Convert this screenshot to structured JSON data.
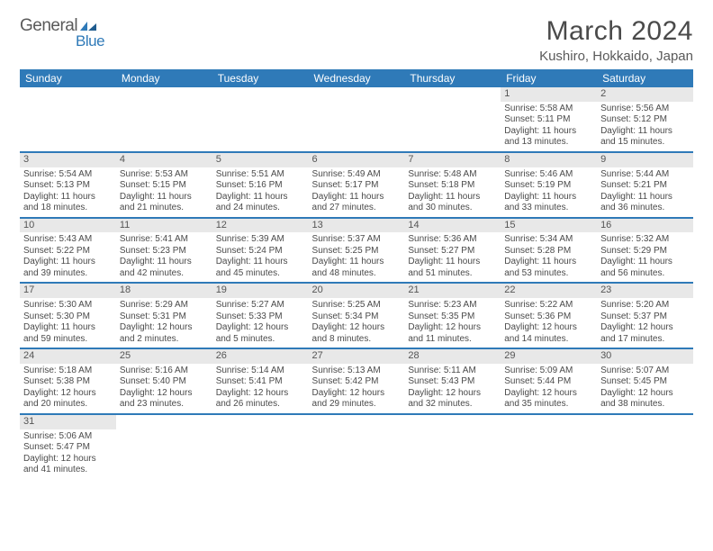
{
  "brand": {
    "name1": "General",
    "name2": "Blue"
  },
  "title": "March 2024",
  "location": "Kushiro, Hokkaido, Japan",
  "colors": {
    "header_bg": "#2f7ab8",
    "header_fg": "#ffffff",
    "daynum_bg": "#e8e8e8",
    "border": "#2f7ab8"
  },
  "weekdays": [
    "Sunday",
    "Monday",
    "Tuesday",
    "Wednesday",
    "Thursday",
    "Friday",
    "Saturday"
  ],
  "cells": [
    {
      "day": "",
      "sunrise": "",
      "sunset": "",
      "daylight": ""
    },
    {
      "day": "",
      "sunrise": "",
      "sunset": "",
      "daylight": ""
    },
    {
      "day": "",
      "sunrise": "",
      "sunset": "",
      "daylight": ""
    },
    {
      "day": "",
      "sunrise": "",
      "sunset": "",
      "daylight": ""
    },
    {
      "day": "",
      "sunrise": "",
      "sunset": "",
      "daylight": ""
    },
    {
      "day": "1",
      "sunrise": "Sunrise: 5:58 AM",
      "sunset": "Sunset: 5:11 PM",
      "daylight": "Daylight: 11 hours and 13 minutes."
    },
    {
      "day": "2",
      "sunrise": "Sunrise: 5:56 AM",
      "sunset": "Sunset: 5:12 PM",
      "daylight": "Daylight: 11 hours and 15 minutes."
    },
    {
      "day": "3",
      "sunrise": "Sunrise: 5:54 AM",
      "sunset": "Sunset: 5:13 PM",
      "daylight": "Daylight: 11 hours and 18 minutes."
    },
    {
      "day": "4",
      "sunrise": "Sunrise: 5:53 AM",
      "sunset": "Sunset: 5:15 PM",
      "daylight": "Daylight: 11 hours and 21 minutes."
    },
    {
      "day": "5",
      "sunrise": "Sunrise: 5:51 AM",
      "sunset": "Sunset: 5:16 PM",
      "daylight": "Daylight: 11 hours and 24 minutes."
    },
    {
      "day": "6",
      "sunrise": "Sunrise: 5:49 AM",
      "sunset": "Sunset: 5:17 PM",
      "daylight": "Daylight: 11 hours and 27 minutes."
    },
    {
      "day": "7",
      "sunrise": "Sunrise: 5:48 AM",
      "sunset": "Sunset: 5:18 PM",
      "daylight": "Daylight: 11 hours and 30 minutes."
    },
    {
      "day": "8",
      "sunrise": "Sunrise: 5:46 AM",
      "sunset": "Sunset: 5:19 PM",
      "daylight": "Daylight: 11 hours and 33 minutes."
    },
    {
      "day": "9",
      "sunrise": "Sunrise: 5:44 AM",
      "sunset": "Sunset: 5:21 PM",
      "daylight": "Daylight: 11 hours and 36 minutes."
    },
    {
      "day": "10",
      "sunrise": "Sunrise: 5:43 AM",
      "sunset": "Sunset: 5:22 PM",
      "daylight": "Daylight: 11 hours and 39 minutes."
    },
    {
      "day": "11",
      "sunrise": "Sunrise: 5:41 AM",
      "sunset": "Sunset: 5:23 PM",
      "daylight": "Daylight: 11 hours and 42 minutes."
    },
    {
      "day": "12",
      "sunrise": "Sunrise: 5:39 AM",
      "sunset": "Sunset: 5:24 PM",
      "daylight": "Daylight: 11 hours and 45 minutes."
    },
    {
      "day": "13",
      "sunrise": "Sunrise: 5:37 AM",
      "sunset": "Sunset: 5:25 PM",
      "daylight": "Daylight: 11 hours and 48 minutes."
    },
    {
      "day": "14",
      "sunrise": "Sunrise: 5:36 AM",
      "sunset": "Sunset: 5:27 PM",
      "daylight": "Daylight: 11 hours and 51 minutes."
    },
    {
      "day": "15",
      "sunrise": "Sunrise: 5:34 AM",
      "sunset": "Sunset: 5:28 PM",
      "daylight": "Daylight: 11 hours and 53 minutes."
    },
    {
      "day": "16",
      "sunrise": "Sunrise: 5:32 AM",
      "sunset": "Sunset: 5:29 PM",
      "daylight": "Daylight: 11 hours and 56 minutes."
    },
    {
      "day": "17",
      "sunrise": "Sunrise: 5:30 AM",
      "sunset": "Sunset: 5:30 PM",
      "daylight": "Daylight: 11 hours and 59 minutes."
    },
    {
      "day": "18",
      "sunrise": "Sunrise: 5:29 AM",
      "sunset": "Sunset: 5:31 PM",
      "daylight": "Daylight: 12 hours and 2 minutes."
    },
    {
      "day": "19",
      "sunrise": "Sunrise: 5:27 AM",
      "sunset": "Sunset: 5:33 PM",
      "daylight": "Daylight: 12 hours and 5 minutes."
    },
    {
      "day": "20",
      "sunrise": "Sunrise: 5:25 AM",
      "sunset": "Sunset: 5:34 PM",
      "daylight": "Daylight: 12 hours and 8 minutes."
    },
    {
      "day": "21",
      "sunrise": "Sunrise: 5:23 AM",
      "sunset": "Sunset: 5:35 PM",
      "daylight": "Daylight: 12 hours and 11 minutes."
    },
    {
      "day": "22",
      "sunrise": "Sunrise: 5:22 AM",
      "sunset": "Sunset: 5:36 PM",
      "daylight": "Daylight: 12 hours and 14 minutes."
    },
    {
      "day": "23",
      "sunrise": "Sunrise: 5:20 AM",
      "sunset": "Sunset: 5:37 PM",
      "daylight": "Daylight: 12 hours and 17 minutes."
    },
    {
      "day": "24",
      "sunrise": "Sunrise: 5:18 AM",
      "sunset": "Sunset: 5:38 PM",
      "daylight": "Daylight: 12 hours and 20 minutes."
    },
    {
      "day": "25",
      "sunrise": "Sunrise: 5:16 AM",
      "sunset": "Sunset: 5:40 PM",
      "daylight": "Daylight: 12 hours and 23 minutes."
    },
    {
      "day": "26",
      "sunrise": "Sunrise: 5:14 AM",
      "sunset": "Sunset: 5:41 PM",
      "daylight": "Daylight: 12 hours and 26 minutes."
    },
    {
      "day": "27",
      "sunrise": "Sunrise: 5:13 AM",
      "sunset": "Sunset: 5:42 PM",
      "daylight": "Daylight: 12 hours and 29 minutes."
    },
    {
      "day": "28",
      "sunrise": "Sunrise: 5:11 AM",
      "sunset": "Sunset: 5:43 PM",
      "daylight": "Daylight: 12 hours and 32 minutes."
    },
    {
      "day": "29",
      "sunrise": "Sunrise: 5:09 AM",
      "sunset": "Sunset: 5:44 PM",
      "daylight": "Daylight: 12 hours and 35 minutes."
    },
    {
      "day": "30",
      "sunrise": "Sunrise: 5:07 AM",
      "sunset": "Sunset: 5:45 PM",
      "daylight": "Daylight: 12 hours and 38 minutes."
    },
    {
      "day": "31",
      "sunrise": "Sunrise: 5:06 AM",
      "sunset": "Sunset: 5:47 PM",
      "daylight": "Daylight: 12 hours and 41 minutes."
    },
    {
      "day": "",
      "sunrise": "",
      "sunset": "",
      "daylight": ""
    },
    {
      "day": "",
      "sunrise": "",
      "sunset": "",
      "daylight": ""
    },
    {
      "day": "",
      "sunrise": "",
      "sunset": "",
      "daylight": ""
    },
    {
      "day": "",
      "sunrise": "",
      "sunset": "",
      "daylight": ""
    },
    {
      "day": "",
      "sunrise": "",
      "sunset": "",
      "daylight": ""
    },
    {
      "day": "",
      "sunrise": "",
      "sunset": "",
      "daylight": ""
    }
  ]
}
